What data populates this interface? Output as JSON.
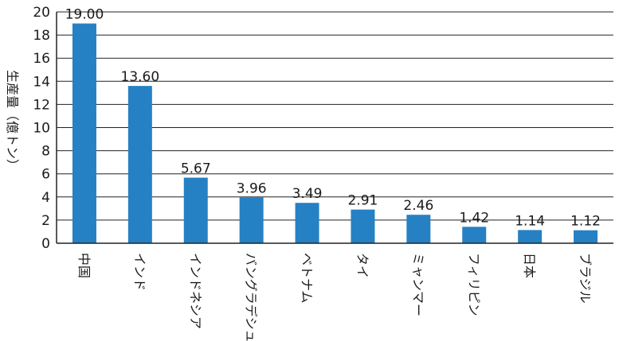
{
  "chart_data": {
    "type": "bar",
    "categories": [
      "中国",
      "インド",
      "インドネシア",
      "バングラデシュ",
      "ベトナム",
      "タイ",
      "ミャンマー",
      "フィリピン",
      "日本",
      "ブラジル"
    ],
    "values": [
      19.0,
      13.6,
      5.67,
      3.96,
      3.49,
      2.91,
      2.46,
      1.42,
      1.14,
      1.12
    ],
    "data_labels": [
      "19.00",
      "13.60",
      "5.67",
      "3.96",
      "3.49",
      "2.91",
      "2.46",
      "1.42",
      "1.14",
      "1.12"
    ],
    "ylabel": "生産量（億トン）",
    "ylim": [
      0,
      20
    ],
    "yticks": [
      0,
      2,
      4,
      6,
      8,
      10,
      12,
      14,
      16,
      18,
      20
    ],
    "grid": true,
    "legend": "none",
    "colors": {
      "bar": "#2581c4",
      "grid": "#222222"
    }
  }
}
